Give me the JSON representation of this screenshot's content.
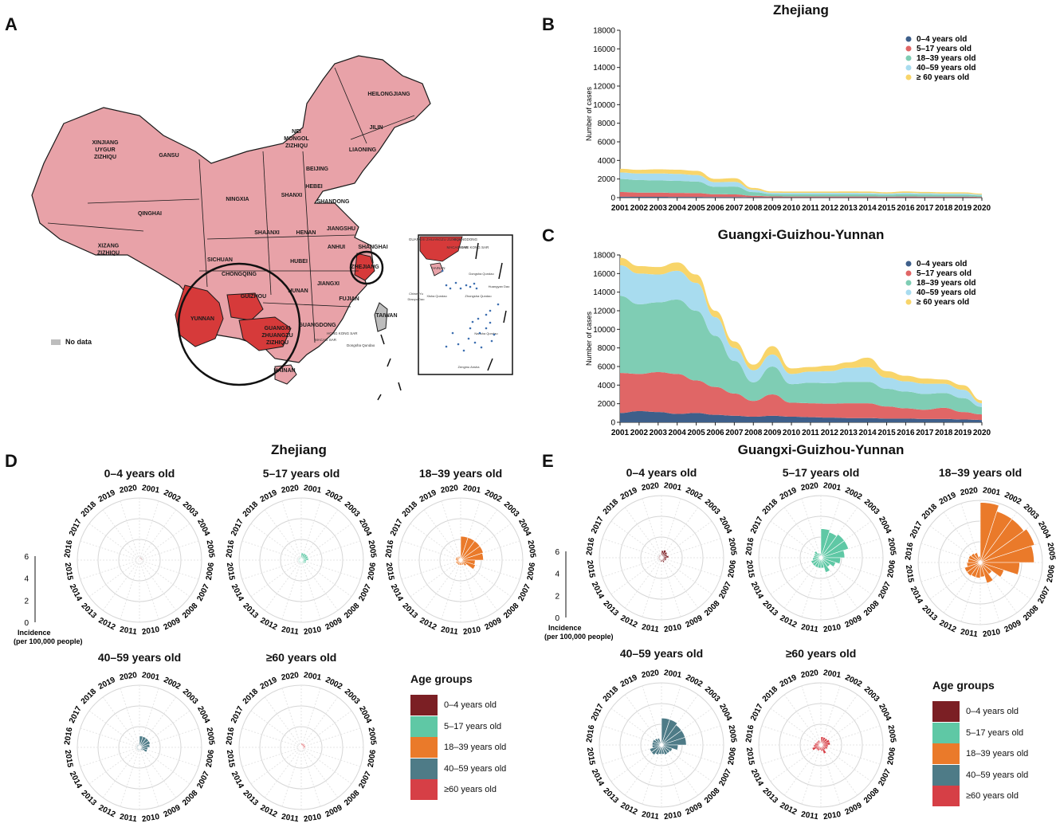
{
  "panels": {
    "A": "A",
    "B": "B",
    "C": "C",
    "D": "D",
    "E": "E"
  },
  "map": {
    "nodata_label": "No data",
    "colors": {
      "province": "#e8a2a8",
      "highlight": "#d63a3a",
      "nodata": "#bdbdbd",
      "border": "#1a1a1a"
    },
    "provinces": [
      "HEILONGJIANG",
      "JILIN",
      "LIAONING",
      "NEI MONGOL ZIZHIQU",
      "XINJIANG UYGUR ZIZHIQU",
      "GANSU",
      "BEIJING",
      "HEBEI",
      "SHANXI",
      "NINGXIA",
      "QINGHAI",
      "SHANDONG",
      "XIZANG ZIZHIQU",
      "SHAANXI",
      "HENAN",
      "JIANGSHU",
      "SHANGHAI",
      "ANHUI",
      "HUBEI",
      "SICHUAN",
      "CHONGQING",
      "ZHEJIANG",
      "GUIZHOU",
      "HUNAN",
      "JIANGXI",
      "FUJIAN",
      "YUNNAN",
      "GUANGXI ZHUANGZU ZIZHIQU",
      "GUANGDONG",
      "TAIWAN",
      "HAINAN"
    ],
    "inset_labels": [
      "GUANGXI ZHUANGZU ZIZHIQU",
      "GUANGDONG",
      "HONG KONG SAR",
      "MACAO SAR",
      "HAINAN",
      "Dongsha Qundao",
      "Chiwei Yu",
      "Diaoyu Dao",
      "Xisha Qundao",
      "Zhongsha Qundao",
      "Huangyan Dao",
      "Nansha Qundao",
      "Zengmu Ansha"
    ],
    "sar_labels": [
      "MACAO SAR",
      "HONG KONG SAR",
      "Dongsha Qundao"
    ]
  },
  "area_charts": [
    {
      "panel": "B",
      "title": "Zhejiang",
      "type": "area",
      "ylabel": "Number of cases",
      "ylim": [
        0,
        18000
      ],
      "yticks": [
        0,
        2000,
        4000,
        6000,
        8000,
        10000,
        12000,
        14000,
        16000,
        18000
      ],
      "x": [
        2001,
        2002,
        2003,
        2004,
        2005,
        2006,
        2007,
        2008,
        2009,
        2010,
        2011,
        2012,
        2013,
        2014,
        2015,
        2016,
        2017,
        2018,
        2019,
        2020
      ],
      "series": [
        {
          "name": "0–4    years old",
          "color": "#3e5f8a",
          "values": [
            100,
            90,
            90,
            80,
            80,
            60,
            60,
            40,
            30,
            30,
            30,
            30,
            30,
            30,
            30,
            30,
            30,
            30,
            30,
            20
          ]
        },
        {
          "name": "5–17   years old",
          "color": "#e06666",
          "values": [
            500,
            450,
            450,
            420,
            400,
            300,
            280,
            150,
            100,
            90,
            90,
            90,
            90,
            90,
            80,
            90,
            80,
            80,
            80,
            60
          ]
        },
        {
          "name": "18–39 years old",
          "color": "#7fcdb4",
          "values": [
            1400,
            1350,
            1300,
            1300,
            1250,
            800,
            850,
            400,
            250,
            240,
            240,
            240,
            240,
            230,
            200,
            240,
            220,
            200,
            200,
            150
          ]
        },
        {
          "name": "40–59 years old",
          "color": "#a8dcef",
          "values": [
            700,
            700,
            750,
            750,
            700,
            500,
            500,
            250,
            150,
            150,
            150,
            150,
            150,
            150,
            130,
            150,
            140,
            130,
            130,
            100
          ]
        },
        {
          "name": "≥ 60    years old",
          "color": "#f8d56a",
          "values": [
            400,
            400,
            450,
            450,
            450,
            350,
            400,
            200,
            130,
            140,
            140,
            140,
            150,
            150,
            130,
            150,
            140,
            130,
            130,
            100
          ]
        }
      ]
    },
    {
      "panel": "C",
      "title": "Guangxi-Guizhou-Yunnan",
      "type": "area",
      "ylabel": "Number of cases",
      "ylim": [
        0,
        18000
      ],
      "yticks": [
        0,
        2000,
        4000,
        6000,
        8000,
        10000,
        12000,
        14000,
        16000,
        18000
      ],
      "x": [
        2001,
        2002,
        2003,
        2004,
        2005,
        2006,
        2007,
        2008,
        2009,
        2010,
        2011,
        2012,
        2013,
        2014,
        2015,
        2016,
        2017,
        2018,
        2019,
        2020
      ],
      "series": [
        {
          "name": "0–4    years old",
          "color": "#3e5f8a",
          "values": [
            1000,
            1200,
            1100,
            900,
            1000,
            800,
            700,
            600,
            700,
            600,
            550,
            500,
            450,
            450,
            400,
            400,
            350,
            350,
            300,
            250
          ]
        },
        {
          "name": "5–17   years old",
          "color": "#e06666",
          "values": [
            4300,
            4000,
            4300,
            4300,
            3500,
            3000,
            2400,
            1700,
            2300,
            1500,
            1500,
            1500,
            1600,
            1600,
            1300,
            1100,
            1000,
            1200,
            800,
            600
          ]
        },
        {
          "name": "18–39 years old",
          "color": "#7fcdb4",
          "values": [
            8300,
            7500,
            7500,
            8000,
            7500,
            5500,
            3500,
            2000,
            3000,
            2000,
            2200,
            2200,
            2300,
            2300,
            1900,
            1800,
            1700,
            1600,
            1500,
            800
          ]
        },
        {
          "name": "40–59 years old",
          "color": "#a8dcef",
          "values": [
            3300,
            3300,
            3000,
            3100,
            3000,
            2000,
            1400,
            1300,
            1300,
            1100,
            1200,
            1300,
            1500,
            1600,
            1200,
            1100,
            1100,
            1000,
            900,
            400
          ]
        },
        {
          "name": "≥ 60    years old",
          "color": "#f8d56a",
          "values": [
            800,
            800,
            800,
            900,
            900,
            700,
            700,
            600,
            900,
            600,
            500,
            600,
            600,
            1000,
            700,
            600,
            550,
            450,
            500,
            300
          ]
        }
      ]
    }
  ],
  "radial": {
    "zhejiang": {
      "panel": "D",
      "title": "Zhejiang",
      "ylim": [
        0,
        6
      ],
      "scale_ticks": [
        "0",
        "2",
        "4",
        "6"
      ],
      "scale_label": "Incidence\n(per 100,000 people)",
      "years": [
        "2001",
        "2002",
        "2003",
        "2004",
        "2005",
        "2006",
        "2007",
        "2008",
        "2009",
        "2010",
        "2011",
        "2012",
        "2013",
        "2014",
        "2015",
        "2016",
        "2017",
        "2018",
        "2019",
        "2020"
      ],
      "charts": [
        {
          "title": "0–4 years old",
          "color": "#7b1f24",
          "values": [
            0.3,
            0.3,
            0.3,
            0.3,
            0.3,
            0.2,
            0.2,
            0.2,
            0.1,
            0.1,
            0.1,
            0.1,
            0.1,
            0.1,
            0.1,
            0.1,
            0.1,
            0.1,
            0.1,
            0.1
          ]
        },
        {
          "title": "5–17 years old",
          "color": "#5fc8a5",
          "values": [
            0.7,
            0.7,
            0.7,
            0.7,
            0.7,
            0.5,
            0.5,
            0.4,
            0.3,
            0.3,
            0.3,
            0.3,
            0.3,
            0.3,
            0.3,
            0.3,
            0.3,
            0.3,
            0.3,
            0.3
          ]
        },
        {
          "title": "18–39 years old",
          "color": "#ea7a2a",
          "values": [
            2.3,
            2.3,
            2.3,
            2.3,
            2.2,
            1.4,
            1.5,
            0.7,
            0.5,
            0.5,
            0.5,
            0.5,
            0.5,
            0.5,
            0.4,
            0.5,
            0.5,
            0.4,
            0.4,
            0.3
          ]
        },
        {
          "title": "40–59 years old",
          "color": "#4e7b87",
          "values": [
            1.1,
            1.1,
            1.1,
            1.1,
            1.0,
            0.8,
            0.8,
            0.4,
            0.3,
            0.3,
            0.3,
            0.3,
            0.3,
            0.3,
            0.3,
            0.3,
            0.3,
            0.3,
            0.3,
            0.3
          ]
        },
        {
          "title": "≥60 years old",
          "color": "#d63f46",
          "values": [
            0.4,
            0.4,
            0.4,
            0.4,
            0.4,
            0.3,
            0.3,
            0.2,
            0.2,
            0.2,
            0.2,
            0.2,
            0.2,
            0.2,
            0.2,
            0.2,
            0.2,
            0.2,
            0.2,
            0.2
          ]
        }
      ]
    },
    "ggy": {
      "panel": "E",
      "title": "Guangxi-Guizhou-Yunnan",
      "ylim": [
        0,
        6
      ],
      "scale_ticks": [
        "0",
        "2",
        "4",
        "6"
      ],
      "scale_label": "Incidence\n(per 100,000 people)",
      "years": [
        "2001",
        "2002",
        "2003",
        "2004",
        "2005",
        "2006",
        "2007",
        "2008",
        "2009",
        "2010",
        "2011",
        "2012",
        "2013",
        "2014",
        "2015",
        "2016",
        "2017",
        "2018",
        "2019",
        "2020"
      ],
      "charts": [
        {
          "title": "0–4 years old",
          "color": "#7b1f24",
          "values": [
            0.7,
            0.8,
            0.7,
            0.6,
            0.7,
            0.5,
            0.5,
            0.4,
            0.5,
            0.4,
            0.4,
            0.3,
            0.3,
            0.3,
            0.3,
            0.3,
            0.3,
            0.3,
            0.3,
            0.2
          ]
        },
        {
          "title": "5–17 years old",
          "color": "#5fc8a5",
          "values": [
            2.8,
            2.6,
            2.8,
            2.8,
            2.3,
            1.9,
            1.5,
            1.1,
            1.5,
            1.0,
            1.0,
            1.0,
            1.0,
            1.0,
            0.8,
            0.7,
            0.7,
            0.8,
            0.5,
            0.4
          ]
        },
        {
          "title": "18–39 years old",
          "color": "#ea7a2a",
          "values": [
            5.8,
            5.2,
            5.2,
            5.5,
            5.2,
            3.8,
            2.4,
            1.4,
            2.1,
            1.4,
            1.5,
            1.5,
            1.6,
            1.6,
            1.3,
            1.2,
            1.2,
            1.1,
            1.0,
            0.6
          ]
        },
        {
          "title": "40–59 years old",
          "color": "#4e7b87",
          "values": [
            2.6,
            2.6,
            2.4,
            2.4,
            2.4,
            1.6,
            1.1,
            1.0,
            1.0,
            0.9,
            0.9,
            1.0,
            1.2,
            1.2,
            0.9,
            0.9,
            0.9,
            0.8,
            0.7,
            0.3
          ]
        },
        {
          "title": "≥60 years old",
          "color": "#d63f46",
          "values": [
            0.8,
            0.8,
            0.8,
            0.9,
            0.9,
            0.7,
            0.7,
            0.6,
            0.9,
            0.6,
            0.5,
            0.6,
            0.6,
            0.9,
            0.7,
            0.6,
            0.5,
            0.5,
            0.5,
            0.3
          ]
        }
      ]
    }
  },
  "legend": {
    "title": "Age groups",
    "items": [
      {
        "label": "0–4 years old",
        "color": "#7b1f24"
      },
      {
        "label": "5–17 years old",
        "color": "#5fc8a5"
      },
      {
        "label": "18–39 years old",
        "color": "#ea7a2a"
      },
      {
        "label": "40–59 years old",
        "color": "#4e7b87"
      },
      {
        "label": "≥60 years old",
        "color": "#d63f46"
      }
    ]
  }
}
